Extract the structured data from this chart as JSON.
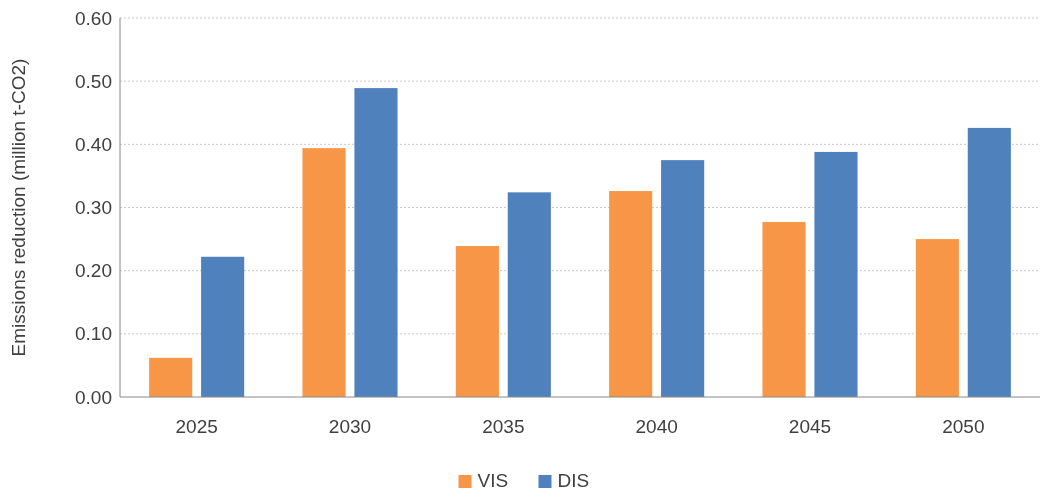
{
  "chart_data": {
    "type": "bar",
    "ylabel": "Emissions reduction (million t-CO2)",
    "categories": [
      "2025",
      "2030",
      "2035",
      "2040",
      "2045",
      "2050"
    ],
    "series": [
      {
        "name": "VIS",
        "color": "#f79646",
        "values": [
          0.062,
          0.394,
          0.239,
          0.326,
          0.277,
          0.25
        ]
      },
      {
        "name": "DIS",
        "color": "#4f81bd",
        "values": [
          0.222,
          0.489,
          0.324,
          0.375,
          0.388,
          0.426
        ]
      }
    ],
    "ylim": [
      0,
      0.6
    ],
    "yticks": [
      {
        "value": 0,
        "label": "0.00"
      },
      {
        "value": 0.1,
        "label": "0.10"
      },
      {
        "value": 0.2,
        "label": "0.20"
      },
      {
        "value": 0.3,
        "label": "0.30"
      },
      {
        "value": 0.4,
        "label": "0.40"
      },
      {
        "value": 0.5,
        "label": "0.50"
      },
      {
        "value": 0.6,
        "label": "0.60"
      }
    ],
    "grid": "y",
    "legend": "bottom"
  }
}
